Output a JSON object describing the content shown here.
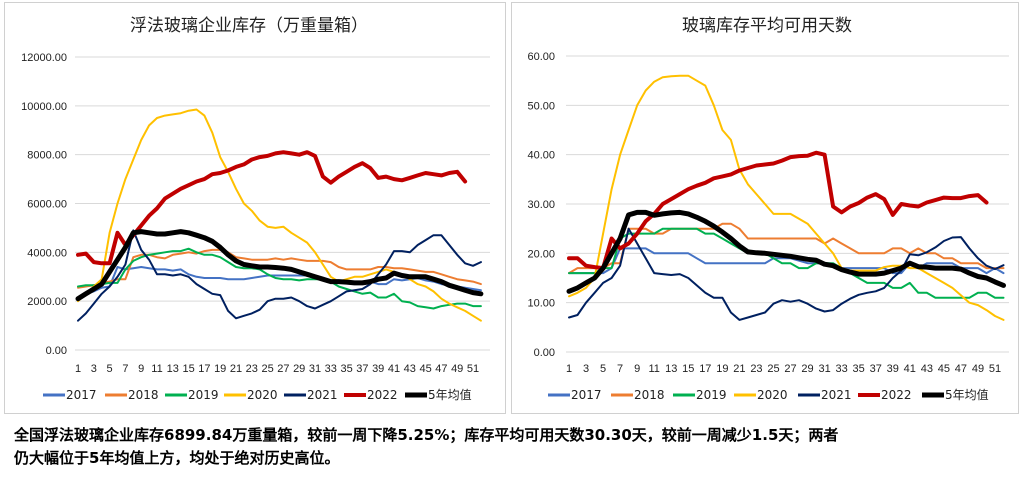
{
  "chart_data": [
    {
      "type": "line",
      "title": "浮法玻璃企业库存（万重量箱）",
      "ylim": [
        0,
        12000
      ],
      "yticks": [
        "0.00",
        "2000.00",
        "4000.00",
        "6000.00",
        "8000.00",
        "10000.00",
        "12000.00"
      ],
      "xticks": [
        "1",
        "3",
        "5",
        "7",
        "9",
        "11",
        "13",
        "15",
        "17",
        "19",
        "21",
        "23",
        "25",
        "27",
        "29",
        "31",
        "33",
        "35",
        "37",
        "39",
        "41",
        "43",
        "45",
        "47",
        "49",
        "51"
      ],
      "grid": true,
      "legend": "bottom",
      "series": [
        {
          "name": "2017",
          "color": "#4472C4",
          "width": 2,
          "values": [
            2100,
            2300,
            2400,
            2550,
            2600,
            3400,
            3300,
            3350,
            3400,
            3350,
            3300,
            3300,
            3250,
            3300,
            3100,
            3000,
            2950,
            2950,
            2950,
            2900,
            2900,
            2900,
            2950,
            3000,
            3050,
            3050,
            3050,
            3050,
            3050,
            3050,
            3050,
            2950,
            2850,
            2800,
            2750,
            2750,
            2750,
            2800,
            2700,
            2700,
            2900,
            2850,
            2900,
            2950,
            2850,
            2800,
            2700,
            2650,
            2600,
            2550,
            2500,
            2450
          ]
        },
        {
          "name": "2018",
          "color": "#ED7D31",
          "width": 2,
          "values": [
            2550,
            2600,
            2650,
            2750,
            2800,
            2900,
            2900,
            3800,
            3900,
            3900,
            3800,
            3750,
            3900,
            3950,
            4000,
            3950,
            4050,
            4100,
            4100,
            4000,
            3800,
            3750,
            3700,
            3700,
            3700,
            3750,
            3700,
            3750,
            3700,
            3650,
            3650,
            3650,
            3600,
            3400,
            3300,
            3300,
            3300,
            3300,
            3400,
            3400,
            3350,
            3350,
            3300,
            3250,
            3200,
            3200,
            3100,
            3000,
            2900,
            2850,
            2800,
            2700
          ]
        },
        {
          "name": "2019",
          "color": "#00B050",
          "width": 2,
          "values": [
            2600,
            2650,
            2650,
            2700,
            2750,
            2750,
            3300,
            3650,
            3800,
            3900,
            3950,
            4000,
            4050,
            4050,
            4150,
            4000,
            3900,
            3900,
            3800,
            3600,
            3400,
            3350,
            3350,
            3300,
            3100,
            2950,
            2900,
            2900,
            2850,
            2900,
            2900,
            2900,
            2800,
            2600,
            2500,
            2400,
            2300,
            2350,
            2150,
            2150,
            2300,
            2000,
            1950,
            1800,
            1750,
            1700,
            1800,
            1850,
            1900,
            1900,
            1800,
            1800
          ]
        },
        {
          "name": "2020",
          "color": "#FFC000",
          "width": 2,
          "values": [
            2000,
            2300,
            2600,
            2900,
            4800,
            6000,
            7000,
            7800,
            8600,
            9200,
            9500,
            9600,
            9650,
            9700,
            9800,
            9850,
            9600,
            8900,
            7900,
            7300,
            6600,
            6000,
            5700,
            5300,
            5050,
            5000,
            5050,
            4800,
            4600,
            4400,
            4000,
            3500,
            3000,
            2800,
            2900,
            3000,
            3000,
            3100,
            3200,
            3300,
            3200,
            3100,
            2900,
            2700,
            2600,
            2400,
            2100,
            1900,
            1750,
            1600,
            1400,
            1200
          ]
        },
        {
          "name": "2021",
          "color": "#002060",
          "width": 2,
          "values": [
            1200,
            1500,
            1900,
            2300,
            2600,
            3000,
            3500,
            4900,
            4100,
            3700,
            3100,
            3100,
            3050,
            3100,
            3000,
            2700,
            2500,
            2300,
            2250,
            1600,
            1300,
            1400,
            1500,
            1650,
            2000,
            2100,
            2100,
            2150,
            2000,
            1800,
            1700,
            1850,
            2000,
            2200,
            2400,
            2450,
            2500,
            2700,
            3100,
            3500,
            4050,
            4050,
            4000,
            4300,
            4500,
            4700,
            4700,
            4300,
            3900,
            3550,
            3450,
            3600
          ]
        },
        {
          "name": "2022",
          "color": "#C00000",
          "width": 4,
          "values": [
            3900,
            3950,
            3600,
            3550,
            3550,
            4800,
            4300,
            4700,
            5100,
            5500,
            5800,
            6200,
            6400,
            6600,
            6750,
            6900,
            7000,
            7200,
            7250,
            7350,
            7500,
            7600,
            7800,
            7900,
            7950,
            8050,
            8100,
            8050,
            8000,
            8100,
            7950,
            7100,
            6850,
            7100,
            7300,
            7500,
            7650,
            7450,
            7050,
            7100,
            7000,
            6950,
            7050,
            7150,
            7250,
            7200,
            7150,
            7250,
            7300,
            6900
          ]
        },
        {
          "name": "5年均值",
          "color": "#000000",
          "width": 5,
          "values": [
            2100,
            2300,
            2500,
            2700,
            3200,
            3700,
            4200,
            4800,
            4850,
            4800,
            4750,
            4750,
            4800,
            4850,
            4800,
            4700,
            4600,
            4450,
            4200,
            3900,
            3650,
            3500,
            3450,
            3400,
            3400,
            3380,
            3350,
            3300,
            3200,
            3100,
            3000,
            2900,
            2800,
            2800,
            2780,
            2750,
            2750,
            2800,
            2900,
            2950,
            3150,
            3050,
            3000,
            3000,
            3000,
            2900,
            2800,
            2650,
            2550,
            2450,
            2350,
            2300
          ]
        }
      ]
    },
    {
      "type": "line",
      "title": "玻璃库存平均可用天数",
      "ylim": [
        0,
        60
      ],
      "yticks": [
        "0.00",
        "10.00",
        "20.00",
        "30.00",
        "40.00",
        "50.00",
        "60.00"
      ],
      "xticks": [
        "1",
        "3",
        "5",
        "7",
        "9",
        "11",
        "13",
        "15",
        "17",
        "19",
        "21",
        "23",
        "25",
        "27",
        "29",
        "31",
        "33",
        "35",
        "37",
        "39",
        "41",
        "43",
        "45",
        "47",
        "49",
        "51"
      ],
      "grid": true,
      "legend": "bottom",
      "series": [
        {
          "name": "2017",
          "color": "#4472C4",
          "width": 2,
          "values": [
            16,
            16,
            16,
            16,
            16,
            17,
            21,
            21,
            21,
            21,
            20,
            20,
            20,
            20,
            20,
            19,
            18,
            18,
            18,
            18,
            18,
            18,
            18,
            18,
            19,
            19,
            19,
            18.5,
            18,
            18,
            18,
            17.5,
            17,
            17,
            17,
            17,
            17,
            17,
            16,
            16,
            18,
            17,
            18,
            18,
            18,
            18,
            17,
            17,
            17,
            16,
            17,
            16
          ]
        },
        {
          "name": "2018",
          "color": "#ED7D31",
          "width": 2,
          "values": [
            16,
            17,
            17,
            17,
            17,
            18,
            18,
            25,
            25,
            25,
            24,
            24,
            25,
            25,
            25,
            25,
            25,
            25,
            26,
            26,
            25,
            23,
            23,
            23,
            23,
            23,
            23,
            23,
            23,
            23,
            22,
            23,
            22,
            21,
            20,
            20,
            20,
            20,
            21,
            21,
            20,
            21,
            20,
            20,
            19,
            19,
            18,
            18,
            18,
            17,
            17,
            17
          ]
        },
        {
          "name": "2019",
          "color": "#00B050",
          "width": 2,
          "values": [
            16,
            16,
            16,
            16,
            17,
            17,
            23,
            24,
            24,
            24,
            24,
            25,
            25,
            25,
            25,
            25,
            24,
            24,
            23,
            22,
            21,
            20,
            20,
            20,
            19,
            18,
            18,
            17,
            17,
            18,
            18,
            18,
            17,
            16,
            15,
            14,
            14,
            14,
            13,
            13,
            14,
            12,
            12,
            11,
            11,
            11,
            11,
            11,
            12,
            12,
            11,
            11
          ]
        },
        {
          "name": "2020",
          "color": "#FFC000",
          "width": 2,
          "values": [
            11.3,
            12,
            13,
            15,
            24,
            33,
            40,
            45,
            50,
            53,
            54.8,
            55.7,
            55.9,
            56,
            56,
            55,
            54,
            50,
            45,
            43,
            37,
            34,
            32,
            30,
            28,
            28,
            28,
            27,
            26,
            24,
            22,
            20,
            17,
            16.5,
            16.5,
            16.5,
            16.5,
            17.2,
            17.5,
            17.5,
            17,
            17,
            16,
            15,
            14,
            13,
            11.5,
            10,
            9.5,
            8.5,
            7.3,
            6.5
          ]
        },
        {
          "name": "2021",
          "color": "#002060",
          "width": 2,
          "values": [
            7,
            7.5,
            10,
            12,
            14,
            15,
            17.5,
            25,
            22,
            19,
            16,
            15.8,
            15.6,
            15.8,
            15,
            13.5,
            12,
            11,
            11,
            8,
            6.5,
            7,
            7.5,
            8,
            9.8,
            10.5,
            10.2,
            10.5,
            9.8,
            8.8,
            8.2,
            8.5,
            9.8,
            10.8,
            11.6,
            12,
            12.3,
            13,
            15,
            16.5,
            19.8,
            19.6,
            20.2,
            21.2,
            22.5,
            23.2,
            23.3,
            21,
            19,
            17.5,
            16.8,
            17.6
          ]
        },
        {
          "name": "2022",
          "color": "#C00000",
          "width": 4,
          "values": [
            19,
            19,
            17.5,
            17.2,
            17,
            23,
            21,
            22,
            24,
            26.5,
            28,
            30,
            31,
            32,
            33,
            33.7,
            34.3,
            35.2,
            35.6,
            36,
            36.8,
            37.3,
            37.8,
            38,
            38.2,
            38.8,
            39.5,
            39.7,
            39.8,
            40.4,
            40,
            29.5,
            28.3,
            29.5,
            30.2,
            31.3,
            32,
            31,
            27.8,
            30,
            29.7,
            29.5,
            30.3,
            30.8,
            31.3,
            31.2,
            31.2,
            31.6,
            31.8,
            30.3
          ]
        },
        {
          "name": "5年均值",
          "color": "#000000",
          "width": 5,
          "values": [
            12.3,
            13,
            14,
            15,
            17,
            20,
            23,
            27.8,
            28.3,
            28.3,
            27.7,
            28,
            28.2,
            28.3,
            28,
            27.3,
            26.5,
            25.5,
            24.3,
            23,
            21.5,
            20.3,
            20.1,
            20,
            19.8,
            19.6,
            19.4,
            19.1,
            18.8,
            18.6,
            17.8,
            17.5,
            16.7,
            16.2,
            15.8,
            15.8,
            15.8,
            16,
            16.5,
            17,
            18,
            17.3,
            17.2,
            17,
            17,
            17,
            16.8,
            16,
            15.3,
            15,
            14.2,
            13.5
          ]
        }
      ]
    }
  ],
  "caption": {
    "line1": "全国浮法玻璃企业库存6899.84万重量箱，较前一周下降5.25%；库存平均可用天数30.30天，较前一周减少1.5天；两者",
    "line2": "仍大幅位于5年均值上方，均处于绝对历史高位。"
  }
}
